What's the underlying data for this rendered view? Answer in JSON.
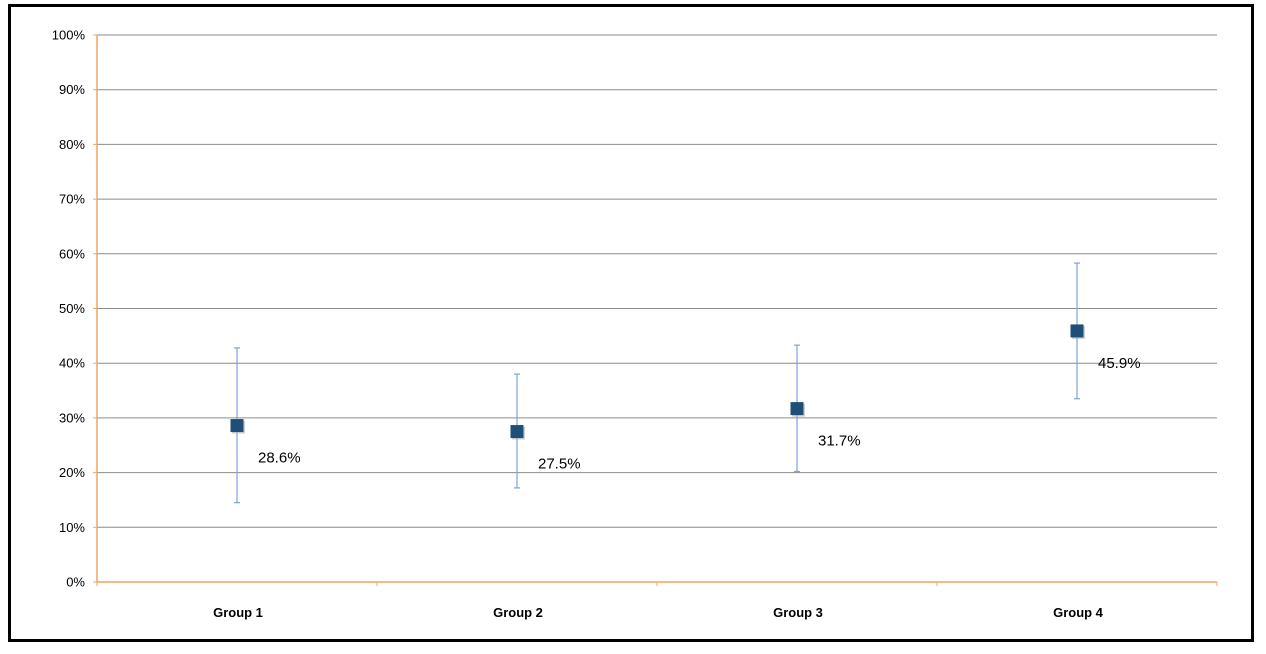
{
  "chart_data": {
    "type": "scatter",
    "title": "",
    "xlabel": "",
    "ylabel": "",
    "categories": [
      "Group 1",
      "Group 2",
      "Group 3",
      "Group 4"
    ],
    "series": [
      {
        "values": [
          28.6,
          27.5,
          31.7,
          45.9
        ],
        "error_low": [
          14.5,
          17.2,
          20.2,
          33.5
        ],
        "error_high": [
          42.8,
          38.0,
          43.3,
          58.3
        ],
        "data_labels": [
          "28.6%",
          "27.5%",
          "31.7%",
          "45.9%"
        ]
      }
    ],
    "ylim": [
      0,
      100
    ],
    "y_ticks": [
      0,
      10,
      20,
      30,
      40,
      50,
      60,
      70,
      80,
      90,
      100
    ],
    "y_tick_labels": [
      "0%",
      "10%",
      "20%",
      "30%",
      "40%",
      "50%",
      "60%",
      "70%",
      "80%",
      "90%",
      "100%"
    ],
    "grid": true,
    "legend": "none",
    "colors": {
      "marker": "#1f4e79",
      "error_bar": "#7fa3d4",
      "gridline": "#8c8c8c",
      "axis": "#f4a460",
      "frame": "#000000"
    }
  }
}
